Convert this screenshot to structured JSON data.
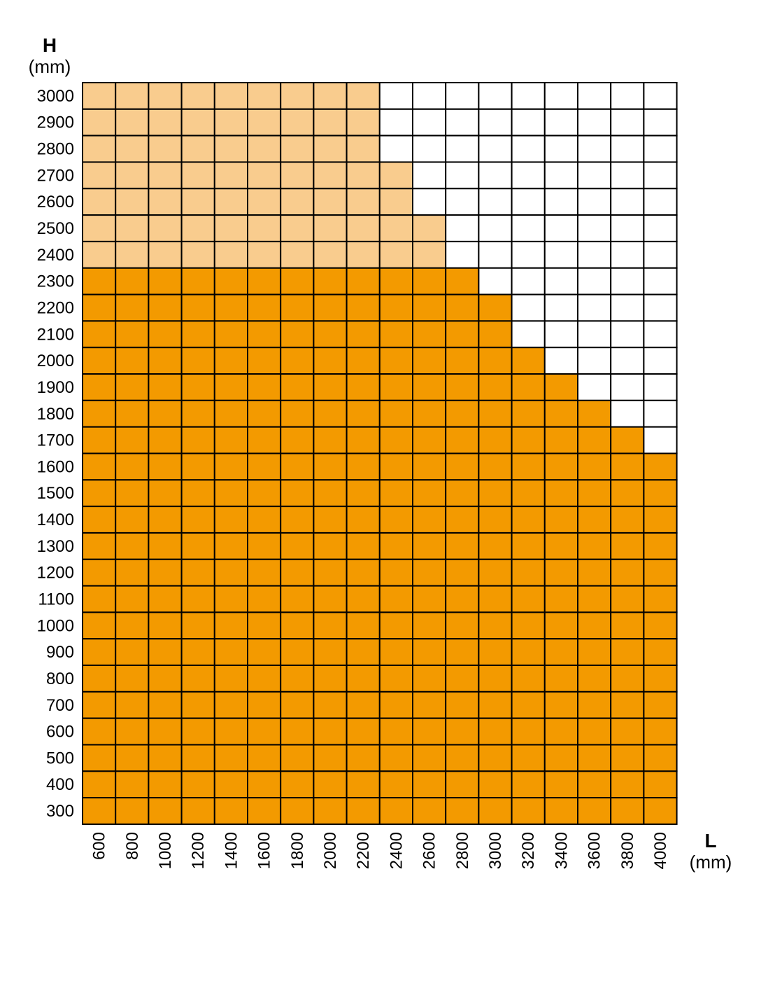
{
  "chart_data": {
    "type": "heatmap",
    "title": "",
    "ylabel": "H",
    "ylabel_unit": "(mm)",
    "xlabel": "L",
    "xlabel_unit": "(mm)",
    "x": [
      600,
      800,
      1000,
      1200,
      1400,
      1600,
      1800,
      2000,
      2200,
      2400,
      2600,
      2800,
      3000,
      3200,
      3400,
      3600,
      3800,
      4000
    ],
    "y": [
      3000,
      2900,
      2800,
      2700,
      2600,
      2500,
      2400,
      2300,
      2200,
      2100,
      2000,
      1900,
      1800,
      1700,
      1600,
      1500,
      1400,
      1300,
      1200,
      1100,
      1000,
      900,
      800,
      700,
      600,
      500,
      400,
      300
    ],
    "series": [
      {
        "fill": 2,
        "color": "#F39A00",
        "max_h_by_l": [
          2300,
          2300,
          2300,
          2300,
          2300,
          2300,
          2300,
          2300,
          2300,
          2300,
          2300,
          2300,
          2200,
          2000,
          1900,
          1800,
          1700,
          1600
        ]
      },
      {
        "fill": 1,
        "color": "#F9CC8E",
        "max_h_by_l": [
          3000,
          3000,
          3000,
          3000,
          3000,
          3000,
          3000,
          3000,
          3000,
          2700,
          2500,
          0,
          0,
          0,
          0,
          0,
          0,
          0
        ]
      }
    ],
    "empty_color": "#FFFFFF",
    "grid_color": "#000000",
    "grid": true,
    "legend": false
  }
}
